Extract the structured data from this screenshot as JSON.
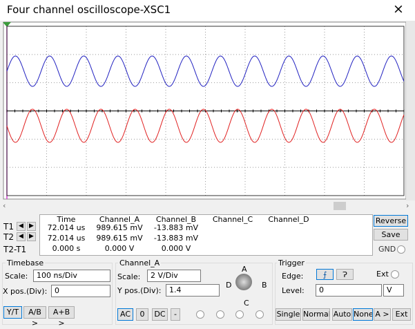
{
  "window": {
    "title": "Four channel oscilloscope-XSC1",
    "close": "×"
  },
  "readout": {
    "headers": [
      "Time",
      "Channel_A",
      "Channel_B",
      "Channel_C",
      "Channel_D"
    ],
    "rows": [
      {
        "label": "T1",
        "values": [
          "72.014 us",
          "989.615 mV",
          "-13.883 mV"
        ]
      },
      {
        "label": "T2",
        "values": [
          "72.014 us",
          "989.615 mV",
          "-13.883 mV"
        ]
      },
      {
        "label": "T2-T1",
        "values": [
          "0.000 s",
          "0.000 V",
          "0.000 V"
        ]
      }
    ]
  },
  "buttons": {
    "reverse": "Reverse",
    "save": "Save",
    "gnd": "GND"
  },
  "timebase": {
    "title": "Timebase",
    "scale_label": "Scale:",
    "scale": "100 ns/Div",
    "xpos_label": "X pos.(Div):",
    "xpos": "0",
    "modes": [
      "Y/T",
      "A/B >",
      "A+B >"
    ]
  },
  "channel": {
    "title": "Channel_A",
    "scale_label": "Scale:",
    "scale": "2  V/Div",
    "ypos_label": "Y pos.(Div):",
    "ypos": "1.4",
    "coupling": [
      "AC",
      "0",
      "DC",
      "-"
    ],
    "knob": [
      "A",
      "B",
      "C",
      "D"
    ]
  },
  "trigger": {
    "title": "Trigger",
    "edge_label": "Edge:",
    "ext": "Ext",
    "level_label": "Level:",
    "level": "0",
    "level_unit": "V",
    "modes": [
      "Single",
      "Normal",
      "Auto",
      "None",
      "A >",
      "Ext"
    ]
  }
}
